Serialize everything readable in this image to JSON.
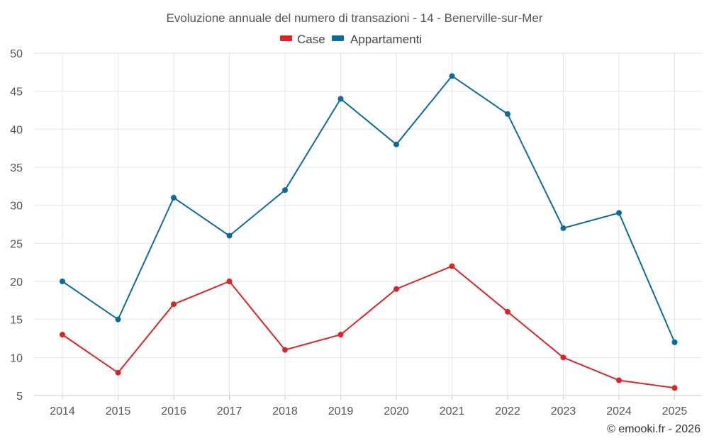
{
  "chart_data": {
    "type": "line",
    "title": "Evoluzione annuale del numero di transazioni - 14 - Benerville-sur-Mer",
    "categories": [
      "2014",
      "2015",
      "2016",
      "2017",
      "2018",
      "2019",
      "2020",
      "2021",
      "2022",
      "2023",
      "2024",
      "2025"
    ],
    "series": [
      {
        "name": "Case",
        "color": "#d62728",
        "values": [
          13,
          8,
          17,
          20,
          11,
          13,
          19,
          22,
          16,
          10,
          7,
          6
        ]
      },
      {
        "name": "Appartamenti",
        "color": "#0d6aa0",
        "values": [
          20,
          15,
          31,
          26,
          32,
          44,
          38,
          47,
          42,
          27,
          29,
          12
        ]
      }
    ],
    "ylim": [
      5,
      50
    ],
    "yticks": [
      5,
      10,
      15,
      20,
      25,
      30,
      35,
      40,
      45,
      50
    ],
    "xlabel": "",
    "ylabel": "",
    "grid": true,
    "legend": "top-center"
  },
  "credit": "© emooki.fr - 2026"
}
